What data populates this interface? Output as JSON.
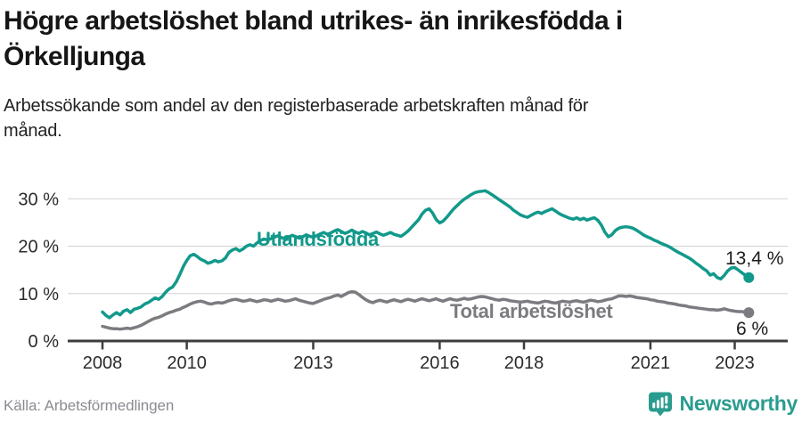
{
  "header": {
    "title_line1": "Högre arbetslöshet bland utrikes- än inrikesfödda i",
    "title_line2": "Örkelljunga",
    "subtitle_line1": "Arbetssökande som andel av den registerbaserade arbetskraften månad för",
    "subtitle_line2": "månad."
  },
  "footer": {
    "source": "Källa: Arbetsförmedlingen",
    "brand": "Newsworthy",
    "brand_color": "#2a9c8f"
  },
  "colors": {
    "accent_teal": "#12998b",
    "line_gray": "#7b7b80",
    "axis": "#3d3d3d",
    "gridline": "#d2d2d2",
    "value_label": "#1c1c1c"
  },
  "chart_data": {
    "type": "line",
    "unit": "percent",
    "frequency": "monthly",
    "x_start": "2008-01",
    "x_end": "2023-05",
    "grid": "horizontal",
    "legend_position": "inline-labels",
    "x_tick_labels": [
      "2008",
      "2010",
      "2013",
      "2016",
      "2018",
      "2021",
      "2023"
    ],
    "y_ticks": [
      0,
      10,
      20,
      30
    ],
    "y_tick_labels": [
      "0 %",
      "10 %",
      "20 %",
      "30 %"
    ],
    "ylim": [
      0,
      33
    ],
    "series": [
      {
        "name": "Utlandsfödda",
        "color": "#12998b",
        "end_label": "13,4 %",
        "end_value": 13.4,
        "values": [
          6.1,
          5.4,
          4.9,
          5.5,
          6.0,
          5.5,
          6.3,
          6.6,
          6.0,
          6.7,
          6.9,
          7.2,
          7.8,
          8.1,
          8.6,
          9.1,
          8.8,
          9.4,
          10.3,
          11.0,
          11.4,
          12.5,
          14.0,
          15.7,
          17.0,
          18.0,
          18.3,
          17.8,
          17.2,
          16.9,
          16.4,
          16.6,
          17.0,
          16.7,
          16.9,
          17.5,
          18.7,
          19.2,
          19.5,
          19.0,
          19.4,
          20.0,
          20.3,
          20.0,
          20.7,
          21.2,
          21.5,
          21.3,
          21.6,
          21.9,
          22.2,
          21.8,
          21.5,
          21.9,
          22.3,
          22.0,
          21.7,
          22.0,
          22.4,
          22.1,
          21.9,
          22.2,
          22.6,
          22.9,
          22.5,
          22.8,
          23.2,
          23.5,
          23.1,
          22.7,
          23.0,
          23.4,
          23.0,
          22.7,
          23.1,
          22.8,
          22.4,
          22.7,
          23.0,
          22.6,
          22.3,
          22.6,
          22.9,
          22.5,
          22.3,
          22.1,
          22.6,
          23.2,
          24.0,
          24.8,
          25.6,
          26.8,
          27.6,
          27.9,
          27.0,
          25.6,
          24.9,
          25.3,
          26.1,
          27.0,
          27.9,
          28.6,
          29.3,
          29.9,
          30.4,
          30.9,
          31.3,
          31.5,
          31.6,
          31.7,
          31.3,
          30.8,
          30.3,
          29.8,
          29.3,
          28.8,
          28.3,
          27.6,
          27.1,
          26.6,
          26.3,
          26.1,
          26.5,
          26.9,
          27.2,
          26.9,
          27.3,
          27.6,
          27.9,
          27.4,
          26.9,
          26.5,
          26.2,
          25.9,
          25.7,
          26.0,
          25.6,
          25.9,
          25.5,
          25.8,
          26.0,
          25.5,
          24.5,
          23.0,
          22.0,
          22.4,
          23.3,
          23.8,
          24.0,
          24.1,
          24.0,
          23.8,
          23.4,
          22.9,
          22.4,
          22.0,
          21.7,
          21.3,
          21.0,
          20.6,
          20.3,
          20.0,
          19.6,
          19.1,
          18.7,
          18.3,
          17.9,
          17.5,
          17.0,
          16.4,
          15.9,
          15.3,
          14.8,
          13.9,
          14.2,
          13.4,
          13.1,
          13.8,
          14.8,
          15.4,
          15.5,
          15.0,
          14.4,
          13.9,
          13.4
        ]
      },
      {
        "name": "Total arbetslöshet",
        "color": "#7b7b80",
        "end_label": "6 %",
        "end_value": 6.0,
        "values": [
          3.1,
          2.9,
          2.7,
          2.6,
          2.6,
          2.5,
          2.6,
          2.7,
          2.6,
          2.8,
          3.0,
          3.3,
          3.7,
          4.1,
          4.5,
          4.8,
          5.0,
          5.3,
          5.7,
          6.0,
          6.2,
          6.5,
          6.7,
          7.1,
          7.4,
          7.8,
          8.1,
          8.3,
          8.4,
          8.2,
          7.9,
          7.8,
          8.0,
          8.1,
          8.0,
          8.2,
          8.5,
          8.7,
          8.8,
          8.6,
          8.4,
          8.5,
          8.7,
          8.5,
          8.3,
          8.5,
          8.7,
          8.6,
          8.4,
          8.6,
          8.8,
          8.6,
          8.4,
          8.5,
          8.7,
          8.9,
          8.6,
          8.4,
          8.2,
          8.0,
          7.9,
          8.2,
          8.5,
          8.8,
          9.0,
          9.2,
          9.5,
          9.7,
          9.4,
          9.8,
          10.2,
          10.4,
          10.3,
          9.8,
          9.2,
          8.7,
          8.3,
          8.1,
          8.4,
          8.6,
          8.4,
          8.2,
          8.5,
          8.7,
          8.5,
          8.3,
          8.6,
          8.8,
          8.6,
          8.4,
          8.7,
          8.9,
          8.7,
          8.5,
          8.7,
          8.9,
          8.6,
          8.4,
          8.7,
          8.9,
          8.7,
          8.6,
          8.8,
          9.0,
          8.8,
          8.9,
          9.1,
          9.3,
          9.4,
          9.3,
          9.1,
          8.9,
          8.7,
          8.6,
          8.8,
          8.7,
          8.5,
          8.4,
          8.3,
          8.2,
          8.3,
          8.4,
          8.2,
          8.1,
          8.0,
          8.2,
          8.4,
          8.3,
          8.1,
          8.0,
          8.2,
          8.4,
          8.3,
          8.2,
          8.4,
          8.5,
          8.3,
          8.2,
          8.4,
          8.6,
          8.5,
          8.3,
          8.4,
          8.6,
          8.8,
          8.9,
          9.2,
          9.5,
          9.5,
          9.4,
          9.5,
          9.4,
          9.2,
          9.1,
          9.0,
          8.9,
          8.7,
          8.6,
          8.4,
          8.3,
          8.2,
          8.0,
          7.9,
          7.8,
          7.6,
          7.5,
          7.4,
          7.2,
          7.1,
          7.0,
          6.9,
          6.8,
          6.7,
          6.6,
          6.6,
          6.5,
          6.6,
          6.8,
          6.6,
          6.4,
          6.3,
          6.2,
          6.2,
          6.1,
          6.0
        ]
      }
    ]
  }
}
